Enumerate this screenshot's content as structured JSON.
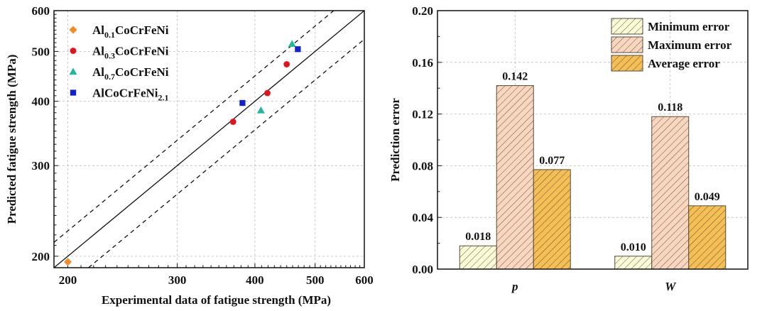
{
  "chart_data": [
    {
      "type": "scatter",
      "xlabel": "Experimental data of fatigue strength (MPa)",
      "ylabel": "Predicted fatigue strength (MPa)",
      "x_scale": "log",
      "y_scale": "log",
      "xlim": [
        190,
        600
      ],
      "ylim": [
        190,
        600
      ],
      "xticks": [
        200,
        300,
        400,
        500,
        600
      ],
      "yticks": [
        200,
        300,
        400,
        500,
        600
      ],
      "grid": true,
      "legend_position": "top-left",
      "reference_lines": [
        {
          "style": "solid",
          "ratio": 1.0
        },
        {
          "style": "dashed",
          "ratio": 1.12
        },
        {
          "style": "dashed",
          "ratio": 0.88
        }
      ],
      "series": [
        {
          "name": "Al0.1CoCrFeNi",
          "label": {
            "pre": "Al",
            "sub": "0.1",
            "post": "CoCrFeNi"
          },
          "marker": "diamond",
          "color": "#f28c28",
          "points": [
            [
              200,
              195
            ]
          ]
        },
        {
          "name": "Al0.3CoCrFeNi",
          "label": {
            "pre": "Al",
            "sub": "0.3",
            "post": "CoCrFeNi"
          },
          "marker": "circle",
          "color": "#e8101a",
          "points": [
            [
              369,
              365
            ],
            [
              419,
              415
            ],
            [
              450,
              472
            ]
          ]
        },
        {
          "name": "Al0.7CoCrFeNi",
          "label": {
            "pre": "Al",
            "sub": "0.7",
            "post": "CoCrFeNi"
          },
          "marker": "triangle",
          "color": "#1fb89a",
          "points": [
            [
              409,
              384
            ],
            [
              459,
              517
            ]
          ]
        },
        {
          "name": "AlCoCrFeNi2.1",
          "label": {
            "pre": "AlCoCrFeNi",
            "sub": "2.1",
            "post": ""
          },
          "marker": "square",
          "color": "#1020d8",
          "points": [
            [
              382,
              397
            ],
            [
              469,
              505
            ]
          ]
        }
      ]
    },
    {
      "type": "bar",
      "ylabel": "Prediction error",
      "xlabel": "",
      "categories": [
        "p",
        "W"
      ],
      "ylim": [
        0,
        0.2
      ],
      "yticks": [
        "0.00",
        "0.04",
        "0.08",
        "0.12",
        "0.16",
        "0.20"
      ],
      "grid": true,
      "legend_position": "top-right",
      "series": [
        {
          "name": "Minimum error",
          "values": [
            0.018,
            0.01
          ],
          "labels": [
            "0.018",
            "0.010"
          ],
          "color": "#fbfbd5"
        },
        {
          "name": "Maximum error",
          "values": [
            0.142,
            0.118
          ],
          "labels": [
            "0.142",
            "0.118"
          ],
          "color": "#f9d6bd"
        },
        {
          "name": "Average error",
          "values": [
            0.077,
            0.049
          ],
          "labels": [
            "0.077",
            "0.049"
          ],
          "color": "#f5bf55"
        }
      ]
    }
  ]
}
